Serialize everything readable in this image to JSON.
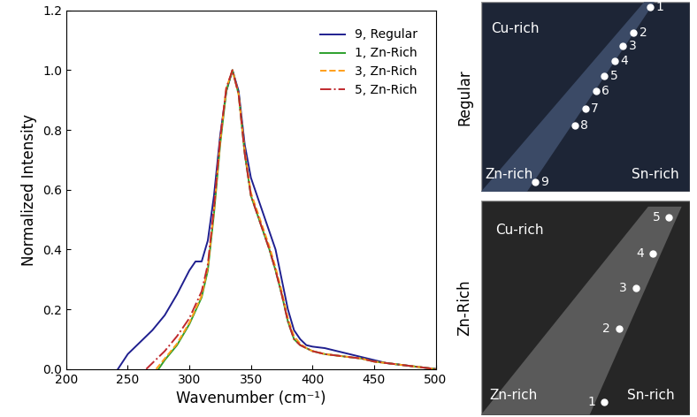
{
  "chart_data": {
    "type": "line",
    "x_label": "Wavenumber (cm⁻¹)",
    "y_label": "Normalized Intensity",
    "xlim": [
      200,
      500
    ],
    "xticks": [
      200,
      250,
      300,
      350,
      400,
      450,
      500
    ],
    "ylim": [
      0.0,
      1.2
    ],
    "yticks": [
      0.0,
      0.2,
      0.4,
      0.6,
      0.8,
      1.0,
      1.2
    ],
    "legend": "upper right",
    "series": [
      {
        "name": "9, Regular",
        "color": "#1f1f8f",
        "line_style": "solid",
        "x": [
          242,
          250,
          260,
          270,
          280,
          290,
          300,
          305,
          310,
          315,
          320,
          325,
          330,
          335,
          340,
          345,
          350,
          355,
          360,
          365,
          370,
          375,
          380,
          385,
          390,
          395,
          400,
          410,
          420,
          430,
          440,
          450,
          460,
          470,
          480,
          490,
          500
        ],
        "values": [
          0.0,
          0.05,
          0.09,
          0.13,
          0.18,
          0.25,
          0.33,
          0.36,
          0.36,
          0.43,
          0.58,
          0.78,
          0.93,
          1.0,
          0.93,
          0.75,
          0.64,
          0.58,
          0.52,
          0.46,
          0.4,
          0.3,
          0.2,
          0.13,
          0.1,
          0.08,
          0.075,
          0.07,
          0.06,
          0.05,
          0.04,
          0.03,
          0.02,
          0.015,
          0.01,
          0.005,
          0.0
        ]
      },
      {
        "name": "1, Zn-Rich",
        "color": "#2ca02c",
        "line_style": "solid",
        "x": [
          275,
          280,
          290,
          300,
          310,
          315,
          320,
          325,
          330,
          335,
          340,
          345,
          350,
          355,
          360,
          365,
          370,
          375,
          380,
          385,
          390,
          395,
          400,
          410,
          420,
          430,
          440,
          450,
          460,
          470,
          480,
          490,
          500
        ],
        "values": [
          0.0,
          0.03,
          0.08,
          0.15,
          0.24,
          0.33,
          0.52,
          0.75,
          0.93,
          1.0,
          0.92,
          0.72,
          0.58,
          0.52,
          0.46,
          0.4,
          0.33,
          0.25,
          0.16,
          0.1,
          0.08,
          0.07,
          0.06,
          0.05,
          0.045,
          0.04,
          0.035,
          0.025,
          0.02,
          0.015,
          0.01,
          0.005,
          0.0
        ]
      },
      {
        "name": "3, Zn-Rich",
        "color": "#ff9f1a",
        "line_style": "dashed",
        "x": [
          273,
          280,
          290,
          300,
          310,
          315,
          320,
          325,
          330,
          335,
          340,
          345,
          350,
          355,
          360,
          365,
          370,
          375,
          380,
          385,
          390,
          395,
          400,
          410,
          420,
          430,
          440,
          450,
          460,
          470,
          480,
          490,
          500
        ],
        "values": [
          0.0,
          0.035,
          0.085,
          0.155,
          0.245,
          0.34,
          0.53,
          0.76,
          0.94,
          1.0,
          0.92,
          0.73,
          0.59,
          0.53,
          0.47,
          0.41,
          0.34,
          0.26,
          0.17,
          0.11,
          0.085,
          0.07,
          0.06,
          0.05,
          0.045,
          0.04,
          0.035,
          0.025,
          0.02,
          0.015,
          0.01,
          0.005,
          0.0
        ]
      },
      {
        "name": "5, Zn-Rich",
        "color": "#c0282d",
        "line_style": "dashdot",
        "x": [
          265,
          270,
          280,
          290,
          300,
          310,
          315,
          320,
          325,
          330,
          335,
          340,
          345,
          350,
          355,
          360,
          365,
          370,
          375,
          380,
          385,
          390,
          395,
          400,
          410,
          420,
          430,
          440,
          450,
          460,
          470,
          480,
          490,
          500
        ],
        "values": [
          0.0,
          0.02,
          0.06,
          0.11,
          0.17,
          0.26,
          0.35,
          0.54,
          0.77,
          0.94,
          1.0,
          0.92,
          0.72,
          0.58,
          0.52,
          0.46,
          0.4,
          0.33,
          0.25,
          0.16,
          0.1,
          0.08,
          0.07,
          0.06,
          0.05,
          0.045,
          0.04,
          0.035,
          0.025,
          0.02,
          0.015,
          0.01,
          0.005,
          0.0
        ]
      }
    ]
  },
  "sample_maps": [
    {
      "label": "Regular",
      "regions": [
        "Cu-rich",
        "Zn-rich",
        "Sn-rich"
      ],
      "points": [
        1,
        2,
        3,
        4,
        5,
        6,
        7,
        8,
        9
      ]
    },
    {
      "label": "Zn-Rich",
      "regions": [
        "Cu-rich",
        "Zn-rich",
        "Sn-rich"
      ],
      "points": [
        1,
        2,
        3,
        4,
        5
      ]
    }
  ]
}
